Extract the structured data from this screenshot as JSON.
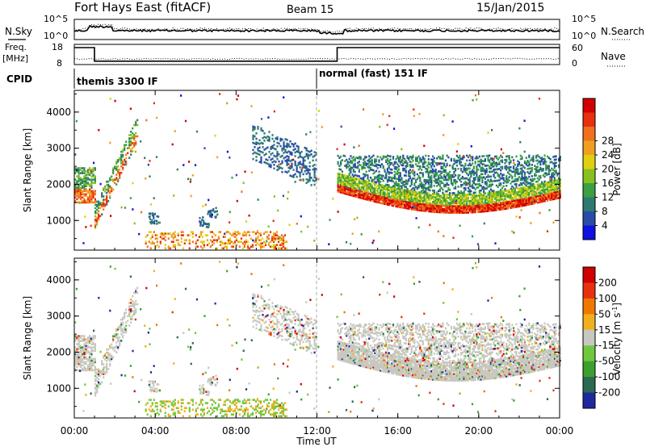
{
  "header": {
    "station": "Fort Hays East (fitACF)",
    "beam": "Beam 15",
    "date": "15/Jan/2015"
  },
  "top_panels": {
    "nsky_label": "N.Sky",
    "nsearch_label": "N.Search",
    "noise_ticks_left": [
      "10^5",
      "10^0"
    ],
    "noise_ticks_right": [
      "10^5",
      "10^0"
    ],
    "freq_label_1": "Freq.",
    "freq_label_2": "[MHz]",
    "freq_ticks": [
      "18",
      "8"
    ],
    "nave_label": "Nave",
    "nave_ticks": [
      "60",
      "0"
    ],
    "cpid_label": "CPID",
    "cpid_programs": [
      {
        "name": "themis 3300 IF",
        "start_hour": 0
      },
      {
        "name": "normal (fast) 151 IF",
        "start_hour": 12
      }
    ],
    "freq_profile": [
      {
        "start_hour": 0,
        "end_hour": 1.0,
        "freq_mhz": 18
      },
      {
        "start_hour": 1.0,
        "end_hour": 13.0,
        "freq_mhz": 10
      },
      {
        "start_hour": 13.0,
        "end_hour": 24,
        "freq_mhz": 18
      }
    ]
  },
  "chart_data": [
    {
      "type": "heatmap",
      "panel": "power",
      "ylabel": "Slant Range [km]",
      "ylim": [
        180,
        4600
      ],
      "yticks": [
        "1000",
        "2000",
        "3000",
        "4000"
      ],
      "colorbar_label": "Power [dB]",
      "colorbar_ticks": [
        "4",
        "8",
        "12",
        "16",
        "20",
        "24",
        "28"
      ],
      "colorbar_colors": [
        "#1010e0",
        "#284ca8",
        "#2e7a70",
        "#3aa040",
        "#88c020",
        "#e0d010",
        "#f0a020",
        "#f07020",
        "#e83010",
        "#d00000"
      ],
      "background_color": "#ffffff"
    },
    {
      "type": "heatmap",
      "panel": "velocity",
      "ylabel": "Slant Range [km]",
      "ylim": [
        180,
        4600
      ],
      "yticks": [
        "1000",
        "2000",
        "3000",
        "4000"
      ],
      "colorbar_label": "Velocity [m s^-1]",
      "colorbar_ticks": [
        "200",
        "100",
        "50",
        "15",
        "-15",
        "-50",
        "-100",
        "-200"
      ],
      "colorbar_colors": [
        "#2028a0",
        "#2a6a50",
        "#3ca030",
        "#70c840",
        "#c8c8c0",
        "#f0b020",
        "#f07800",
        "#e83010",
        "#d00000"
      ],
      "ground_scatter_color": "#c8c8c0"
    }
  ],
  "xaxis": {
    "label": "Time UT",
    "ticks": [
      "00:00",
      "04:00",
      "08:00",
      "12:00",
      "16:00",
      "20:00",
      "00:00"
    ],
    "range_hours": [
      0,
      24
    ]
  }
}
